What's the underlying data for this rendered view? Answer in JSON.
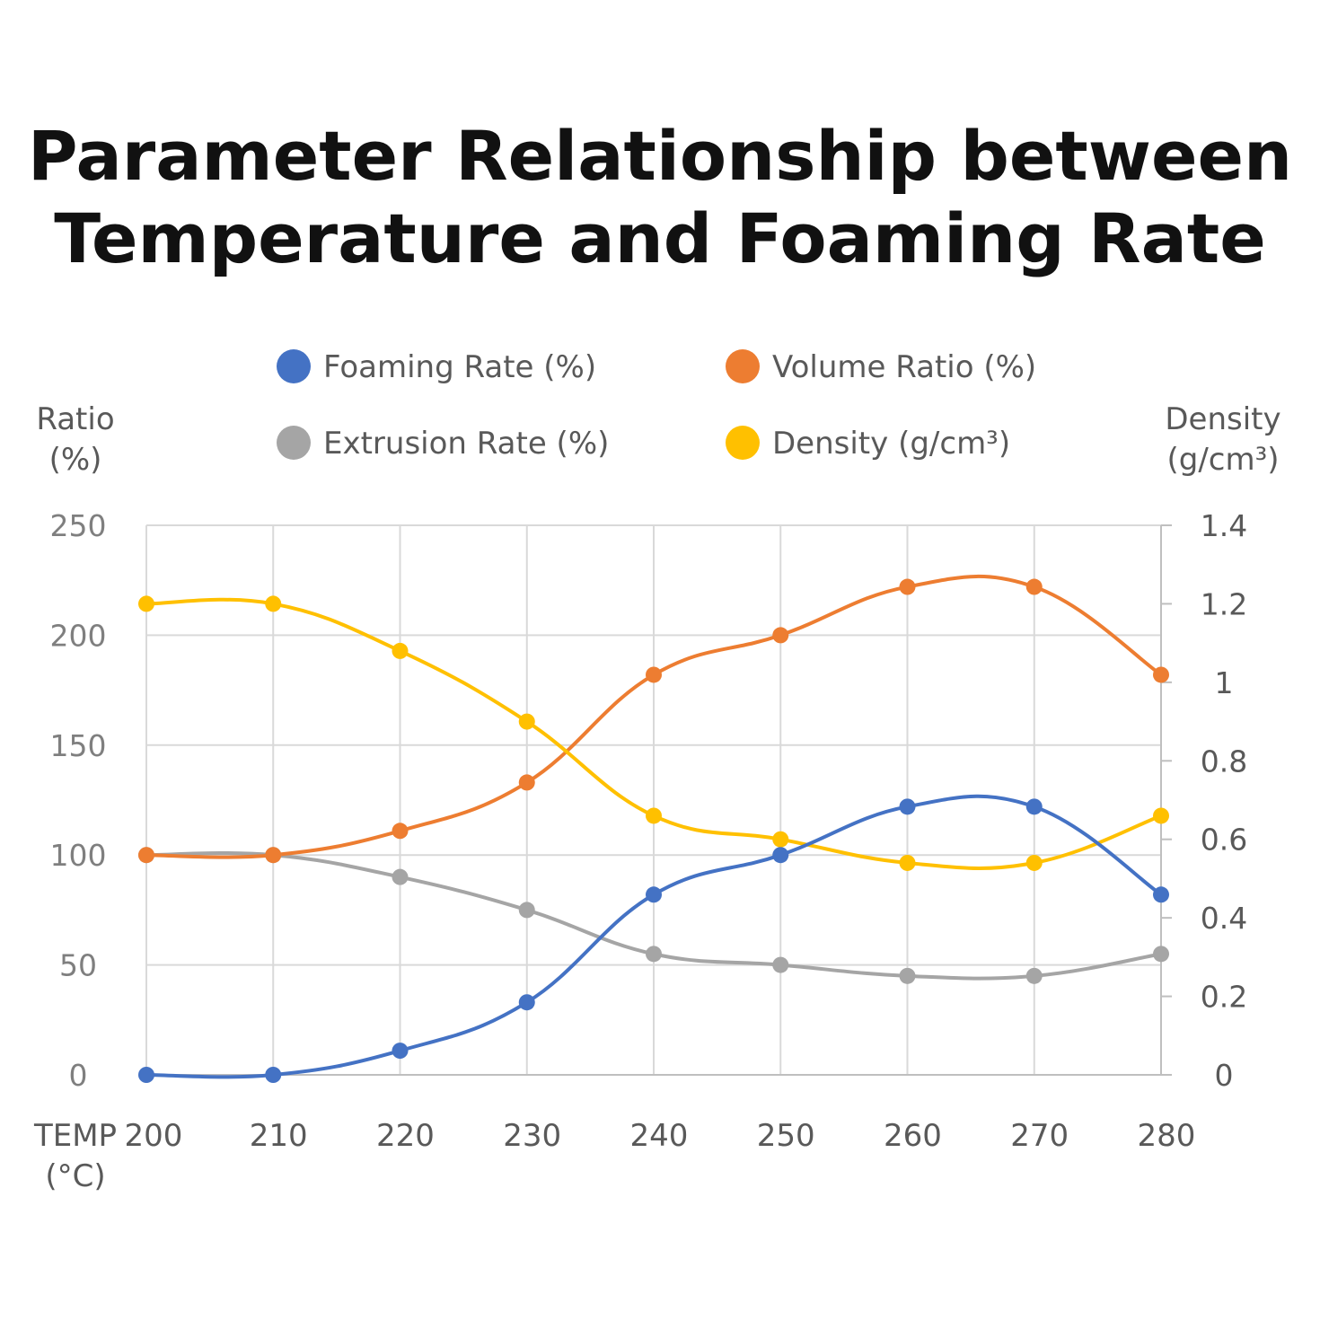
{
  "title_lines": [
    "Parameter Relationship between",
    "Temperature and Foaming Rate"
  ],
  "chart_data": {
    "type": "line",
    "title": "Parameter Relationship between Temperature and Foaming Rate",
    "xlabel": "TEMP (°C)",
    "ylabel_left": [
      "Ratio",
      "(%)"
    ],
    "ylabel_right": [
      "Density",
      "(g/cm³)"
    ],
    "xlabel_lines": [
      "TEMP",
      "(°C)"
    ],
    "x": [
      200,
      210,
      220,
      230,
      240,
      250,
      260,
      270,
      280
    ],
    "ylim_left": [
      0,
      250
    ],
    "yticks_left": [
      0,
      50,
      100,
      150,
      200,
      250
    ],
    "ylim_right": [
      0,
      1.4
    ],
    "yticks_right": [
      "0",
      "0.2",
      "0.4",
      "0.6",
      "0.8",
      "1",
      "1.2",
      "1.4"
    ],
    "grid": true,
    "legend_position": "top",
    "series": [
      {
        "name": "Foaming Rate (%)",
        "axis": "left",
        "color": "#4472c4",
        "values": [
          0,
          0,
          11,
          33,
          82,
          100,
          122,
          122,
          82
        ]
      },
      {
        "name": "Volume Ratio (%)",
        "axis": "left",
        "color": "#ed7d31",
        "values": [
          100,
          100,
          111,
          133,
          182,
          200,
          222,
          222,
          182
        ]
      },
      {
        "name": "Extrusion Rate (%)",
        "axis": "left",
        "color": "#a5a5a5",
        "values": [
          100,
          100,
          90,
          75,
          55,
          50,
          45,
          45,
          55
        ]
      },
      {
        "name": "Density (g/cm³)",
        "axis": "right",
        "color": "#ffc000",
        "values": [
          1.2,
          1.2,
          1.08,
          0.9,
          0.66,
          0.6,
          0.54,
          0.54,
          0.66
        ]
      }
    ]
  }
}
